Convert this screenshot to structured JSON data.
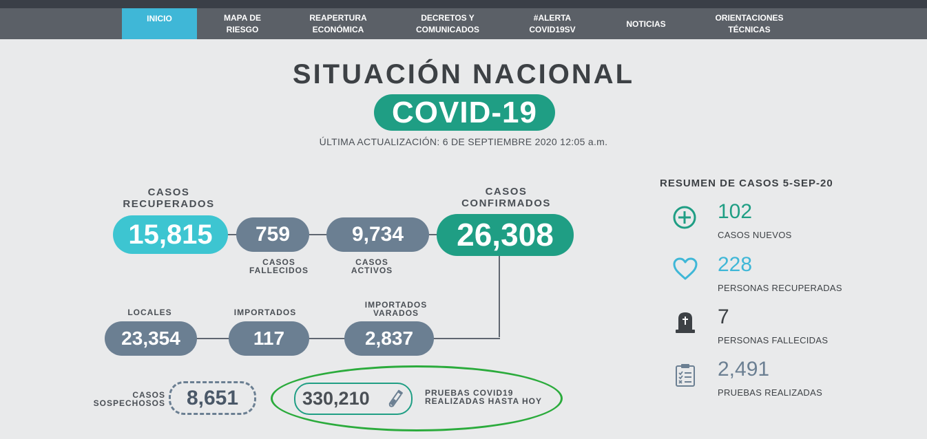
{
  "nav": {
    "items": [
      {
        "label": "INICIO"
      },
      {
        "label": "MAPA DE\nRIESGO"
      },
      {
        "label": "REAPERTURA\nECONÓMICA"
      },
      {
        "label": "DECRETOS Y\nCOMUNICADOS"
      },
      {
        "label": "#ALERTA\nCOVID19SV"
      },
      {
        "label": "NOTICIAS"
      },
      {
        "label": "ORIENTACIONES\nTÉCNICAS"
      }
    ]
  },
  "header": {
    "title": "SITUACIÓN NACIONAL",
    "badge": "COVID-19",
    "updated": "ÚLTIMA ACTUALIZACIÓN: 6 DE SEPTIEMBRE 2020 12:05 a.m."
  },
  "stats": {
    "recuperados": {
      "label": "CASOS\nRECUPERADOS",
      "value": "15,815"
    },
    "fallecidos": {
      "label": "CASOS\nFALLECIDOS",
      "value": "759"
    },
    "activos": {
      "label": "CASOS\nACTIVOS",
      "value": "9,734"
    },
    "confirmados": {
      "label": "CASOS\nCONFIRMADOS",
      "value": "26,308"
    },
    "locales": {
      "label": "LOCALES",
      "value": "23,354"
    },
    "importados": {
      "label": "IMPORTADOS",
      "value": "117"
    },
    "varados": {
      "label": "IMPORTADOS\nVARADOS",
      "value": "2,837"
    },
    "sospechosos": {
      "label": "CASOS\nSOSPECHOSOS",
      "value": "8,651"
    },
    "pruebas": {
      "label": "PRUEBAS COVID19\nREALIZADAS HASTA HOY",
      "value": "330,210"
    }
  },
  "resumen": {
    "title": "RESUMEN DE CASOS 5-SEP-20",
    "items": [
      {
        "value": "102",
        "label": "CASOS NUEVOS",
        "color": "#1f9e84",
        "icon": "plus-circle-icon"
      },
      {
        "value": "228",
        "label": "PERSONAS RECUPERADAS",
        "color": "#3fb7d7",
        "icon": "heart-icon"
      },
      {
        "value": "7",
        "label": "PERSONAS FALLECIDAS",
        "color": "#3d4145",
        "icon": "tombstone-icon"
      },
      {
        "value": "2,491",
        "label": "PRUEBAS REALIZADAS",
        "color": "#6b7f92",
        "icon": "clipboard-icon"
      }
    ]
  },
  "colors": {
    "green": "#1f9e84",
    "cyan": "#3fb7d7",
    "grey_pill": "#6b7f92",
    "nav": "#5b6067",
    "highlight": "#2bab3c"
  }
}
